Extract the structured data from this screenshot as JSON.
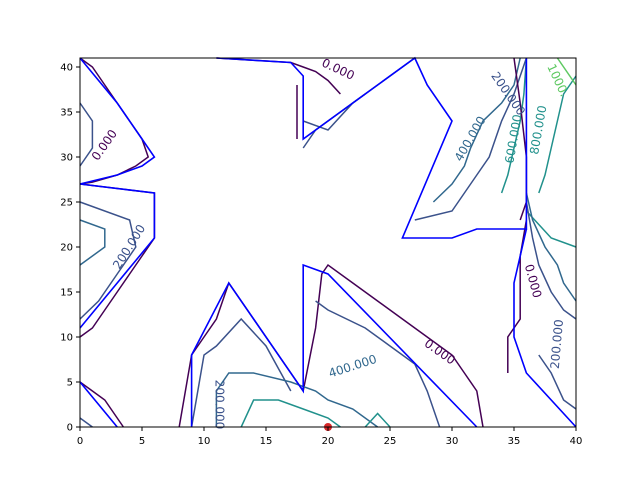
{
  "chart_data": {
    "type": "contour",
    "title": "",
    "xlabel": "",
    "ylabel": "",
    "xlim": [
      0,
      40
    ],
    "ylim": [
      0,
      41
    ],
    "x_ticks": [
      "0",
      "5",
      "10",
      "15",
      "20",
      "25",
      "30",
      "35",
      "40"
    ],
    "y_ticks": [
      "0",
      "5",
      "10",
      "15",
      "20",
      "25",
      "30",
      "35",
      "40"
    ],
    "grid": false,
    "legend": "none",
    "contour_labels": [
      {
        "text": "0.000",
        "x": 20.8,
        "y": 39.7,
        "color": "#440154",
        "rotation": 25
      },
      {
        "text": "0.000",
        "x": 2.0,
        "y": 31.3,
        "color": "#440154",
        "rotation": -55
      },
      {
        "text": "200.000",
        "x": 4.0,
        "y": 20.0,
        "color": "#3b528b",
        "rotation": -58
      },
      {
        "text": "200.000",
        "x": 34.5,
        "y": 37.0,
        "color": "#3b528b",
        "rotation": 55
      },
      {
        "text": "400.000",
        "x": 31.5,
        "y": 32.0,
        "color": "#31688e",
        "rotation": -60
      },
      {
        "text": "600.000",
        "x": 35.0,
        "y": 32.0,
        "color": "#21918c",
        "rotation": -80
      },
      {
        "text": "800.000",
        "x": 37.0,
        "y": 33.0,
        "color": "#21918c",
        "rotation": -80
      },
      {
        "text": "1000.",
        "x": 38.5,
        "y": 38.5,
        "color": "#5ec962",
        "rotation": 65
      },
      {
        "text": "0.000",
        "x": 36.5,
        "y": 16.2,
        "color": "#440154",
        "rotation": 75
      },
      {
        "text": "200.000",
        "x": 38.5,
        "y": 9.2,
        "color": "#3b528b",
        "rotation": -85
      },
      {
        "text": "0.000",
        "x": 29.0,
        "y": 8.3,
        "color": "#440154",
        "rotation": 35
      },
      {
        "text": "400.000",
        "x": 22.0,
        "y": 6.7,
        "color": "#31688e",
        "rotation": -18
      },
      {
        "text": "200.000",
        "x": 11.2,
        "y": 2.5,
        "color": "#3b528b",
        "rotation": 90
      }
    ],
    "contour_lines": [
      {
        "level": 0,
        "color": "#440154",
        "points": [
          [
            0,
            41
          ],
          [
            1,
            40
          ],
          [
            2,
            38
          ],
          [
            3,
            36
          ],
          [
            4,
            34
          ],
          [
            5,
            32
          ],
          [
            5.5,
            30
          ],
          [
            4.5,
            29
          ],
          [
            3,
            28
          ],
          [
            1,
            27.2
          ],
          [
            0,
            27
          ]
        ]
      },
      {
        "level": 200,
        "color": "#3b528b",
        "points": [
          [
            0,
            36
          ],
          [
            1,
            34
          ],
          [
            1,
            31
          ],
          [
            0,
            29
          ]
        ]
      },
      {
        "level": 0,
        "color": "#440154",
        "points": [
          [
            0,
            27
          ],
          [
            6,
            26
          ],
          [
            6,
            21
          ],
          [
            5,
            19
          ],
          [
            4,
            17
          ],
          [
            3,
            15
          ],
          [
            2,
            13
          ],
          [
            1,
            11
          ],
          [
            0,
            10
          ]
        ]
      },
      {
        "level": 200,
        "color": "#3b528b",
        "points": [
          [
            0,
            25
          ],
          [
            4,
            23
          ],
          [
            4.5,
            20
          ],
          [
            3,
            17
          ],
          [
            1.5,
            14
          ],
          [
            0,
            12
          ]
        ]
      },
      {
        "level": 400,
        "color": "#31688e",
        "points": [
          [
            0,
            23
          ],
          [
            2,
            22
          ],
          [
            2,
            20
          ],
          [
            0,
            18
          ]
        ]
      },
      {
        "level": 0,
        "color": "#440154",
        "points": [
          [
            11,
            41
          ],
          [
            17,
            40.5
          ],
          [
            18,
            40
          ],
          [
            19,
            39.5
          ],
          [
            20,
            38.5
          ],
          [
            21,
            37
          ]
        ]
      },
      {
        "level": 200,
        "color": "#3b528b",
        "points": [
          [
            18,
            34
          ],
          [
            20,
            33
          ],
          [
            22,
            36
          ],
          [
            23,
            37
          ],
          [
            24,
            38
          ],
          [
            25,
            39
          ],
          [
            26,
            40
          ],
          [
            27,
            41
          ]
        ]
      },
      {
        "level": 200,
        "color": "#3b528b",
        "points": [
          [
            18,
            31
          ],
          [
            19,
            33
          ],
          [
            21,
            35
          ],
          [
            23,
            37
          ]
        ]
      },
      {
        "level": 0,
        "color": "#440154",
        "points": [
          [
            17.5,
            32
          ],
          [
            17.5,
            36
          ],
          [
            17.5,
            38
          ]
        ]
      },
      {
        "level": 400,
        "color": "#31688e",
        "points": [
          [
            28.5,
            25
          ],
          [
            30,
            27
          ],
          [
            31,
            29
          ],
          [
            31.5,
            31
          ],
          [
            32.5,
            34
          ],
          [
            34,
            36
          ],
          [
            35,
            38
          ],
          [
            35.5,
            41
          ]
        ]
      },
      {
        "level": 200,
        "color": "#3b528b",
        "points": [
          [
            27,
            23
          ],
          [
            30,
            24
          ],
          [
            31,
            26
          ],
          [
            32,
            28
          ],
          [
            33,
            30
          ],
          [
            33.5,
            32
          ],
          [
            34,
            34
          ],
          [
            35,
            37
          ],
          [
            36,
            41
          ]
        ]
      },
      {
        "level": 600,
        "color": "#21918c",
        "points": [
          [
            34,
            26
          ],
          [
            34.5,
            28
          ],
          [
            35,
            31
          ],
          [
            35.5,
            34
          ],
          [
            35.8,
            37
          ],
          [
            36,
            41
          ]
        ]
      },
      {
        "level": 800,
        "color": "#21918c",
        "points": [
          [
            37,
            26
          ],
          [
            37.5,
            28
          ],
          [
            38,
            31
          ],
          [
            38.5,
            34
          ],
          [
            39,
            37
          ],
          [
            40,
            39
          ]
        ]
      },
      {
        "level": 1000,
        "color": "#5ec962",
        "points": [
          [
            38.5,
            41
          ],
          [
            39,
            40
          ],
          [
            40,
            38
          ]
        ]
      },
      {
        "level": 600,
        "color": "#21918c",
        "points": [
          [
            36,
            24
          ],
          [
            38,
            21
          ],
          [
            40,
            20
          ]
        ]
      },
      {
        "level": 400,
        "color": "#31688e",
        "points": [
          [
            36,
            26
          ],
          [
            36.5,
            23
          ],
          [
            37.5,
            20
          ],
          [
            38.5,
            18
          ],
          [
            39,
            16
          ],
          [
            40,
            14
          ]
        ]
      },
      {
        "level": 200,
        "color": "#3b528b",
        "points": [
          [
            36,
            25
          ],
          [
            36.5,
            21
          ],
          [
            37,
            18
          ],
          [
            38,
            15
          ],
          [
            39,
            13
          ],
          [
            40,
            12
          ]
        ]
      },
      {
        "level": 0,
        "color": "#440154",
        "points": [
          [
            36,
            23
          ],
          [
            35.5,
            19
          ],
          [
            35.5,
            16
          ],
          [
            35.5,
            12
          ],
          [
            34.5,
            10
          ],
          [
            34.5,
            6
          ]
        ]
      },
      {
        "level": 0,
        "color": "#440154",
        "points": [
          [
            35,
            41
          ],
          [
            35.5,
            36
          ],
          [
            36,
            30
          ],
          [
            36,
            25
          ],
          [
            35.5,
            23
          ]
        ]
      },
      {
        "level": 200,
        "color": "#3b528b",
        "points": [
          [
            37,
            8
          ],
          [
            38,
            6
          ],
          [
            39,
            3
          ],
          [
            40,
            2
          ]
        ]
      },
      {
        "level": 0,
        "color": "#440154",
        "points": [
          [
            8,
            0
          ],
          [
            9,
            8
          ],
          [
            10,
            10
          ],
          [
            11,
            12
          ],
          [
            12,
            16
          ],
          [
            13,
            14
          ],
          [
            14,
            12
          ],
          [
            15,
            10
          ],
          [
            16,
            8
          ],
          [
            17,
            6
          ],
          [
            18,
            4
          ],
          [
            19,
            11
          ],
          [
            19.5,
            17
          ],
          [
            20,
            18
          ],
          [
            22,
            16
          ],
          [
            24,
            14
          ],
          [
            26,
            12
          ],
          [
            28,
            10
          ],
          [
            30,
            8
          ],
          [
            31,
            6
          ],
          [
            32,
            4
          ],
          [
            32.5,
            0
          ]
        ]
      },
      {
        "level": 200,
        "color": "#3b528b",
        "points": [
          [
            9,
            0
          ],
          [
            10,
            8
          ],
          [
            11,
            9
          ],
          [
            13,
            12
          ],
          [
            15,
            9
          ],
          [
            17,
            4
          ]
        ]
      },
      {
        "level": 200,
        "color": "#3b528b",
        "points": [
          [
            19,
            14
          ],
          [
            20,
            13
          ],
          [
            23,
            11
          ],
          [
            25,
            9
          ],
          [
            27,
            7
          ],
          [
            28,
            4
          ],
          [
            29,
            0
          ]
        ]
      },
      {
        "level": 400,
        "color": "#31688e",
        "points": [
          [
            11,
            0
          ],
          [
            11,
            4
          ],
          [
            12,
            6
          ],
          [
            14,
            6
          ],
          [
            17,
            5
          ],
          [
            19,
            4
          ],
          [
            20,
            3
          ],
          [
            22,
            2
          ],
          [
            24,
            0
          ]
        ]
      },
      {
        "level": 600,
        "color": "#21918c",
        "points": [
          [
            13,
            0
          ],
          [
            14,
            3
          ],
          [
            16,
            3
          ],
          [
            18,
            2
          ],
          [
            20,
            1
          ],
          [
            21,
            0
          ]
        ]
      },
      {
        "level": 800,
        "color": "#21918c",
        "points": [
          [
            23,
            0
          ],
          [
            24,
            1.5
          ],
          [
            25,
            0
          ]
        ]
      },
      {
        "level": 0,
        "color": "#440154",
        "points": [
          [
            0,
            5
          ],
          [
            1,
            4
          ],
          [
            2,
            3
          ],
          [
            3,
            1
          ],
          [
            3.5,
            0
          ]
        ]
      },
      {
        "level": 200,
        "color": "#3b528b",
        "points": [
          [
            0,
            1
          ],
          [
            1,
            0
          ]
        ]
      }
    ],
    "boundary_paths": [
      {
        "color": "#0000ff",
        "points": [
          [
            0,
            41
          ],
          [
            3,
            36
          ],
          [
            5,
            32
          ],
          [
            6,
            30
          ],
          [
            5,
            29
          ],
          [
            3,
            28
          ],
          [
            0,
            27
          ],
          [
            6,
            26
          ],
          [
            6,
            21
          ],
          [
            3,
            16
          ],
          [
            0,
            11
          ]
        ]
      },
      {
        "color": "#0000ff",
        "points": [
          [
            11,
            41
          ],
          [
            17,
            40.5
          ],
          [
            18,
            39
          ],
          [
            18,
            32
          ],
          [
            21,
            35
          ],
          [
            23,
            37
          ],
          [
            27,
            41
          ],
          [
            28,
            38
          ],
          [
            30,
            34
          ],
          [
            26,
            21
          ],
          [
            30,
            21
          ],
          [
            32,
            22
          ],
          [
            36,
            22
          ],
          [
            36,
            41
          ]
        ]
      },
      {
        "color": "#0000ff",
        "points": [
          [
            0,
            5
          ],
          [
            3,
            0
          ]
        ]
      },
      {
        "color": "#0000ff",
        "points": [
          [
            9,
            0
          ],
          [
            9,
            8
          ],
          [
            12,
            16
          ],
          [
            18,
            4
          ],
          [
            18,
            18
          ],
          [
            20,
            17
          ],
          [
            32,
            0
          ]
        ]
      },
      {
        "color": "#0000ff",
        "points": [
          [
            36,
            22
          ],
          [
            35,
            16
          ],
          [
            35,
            10
          ],
          [
            36,
            6
          ],
          [
            40,
            0
          ]
        ]
      }
    ],
    "markers": [
      {
        "type": "point",
        "x": 20,
        "y": 0,
        "color": "#d62728"
      }
    ]
  }
}
